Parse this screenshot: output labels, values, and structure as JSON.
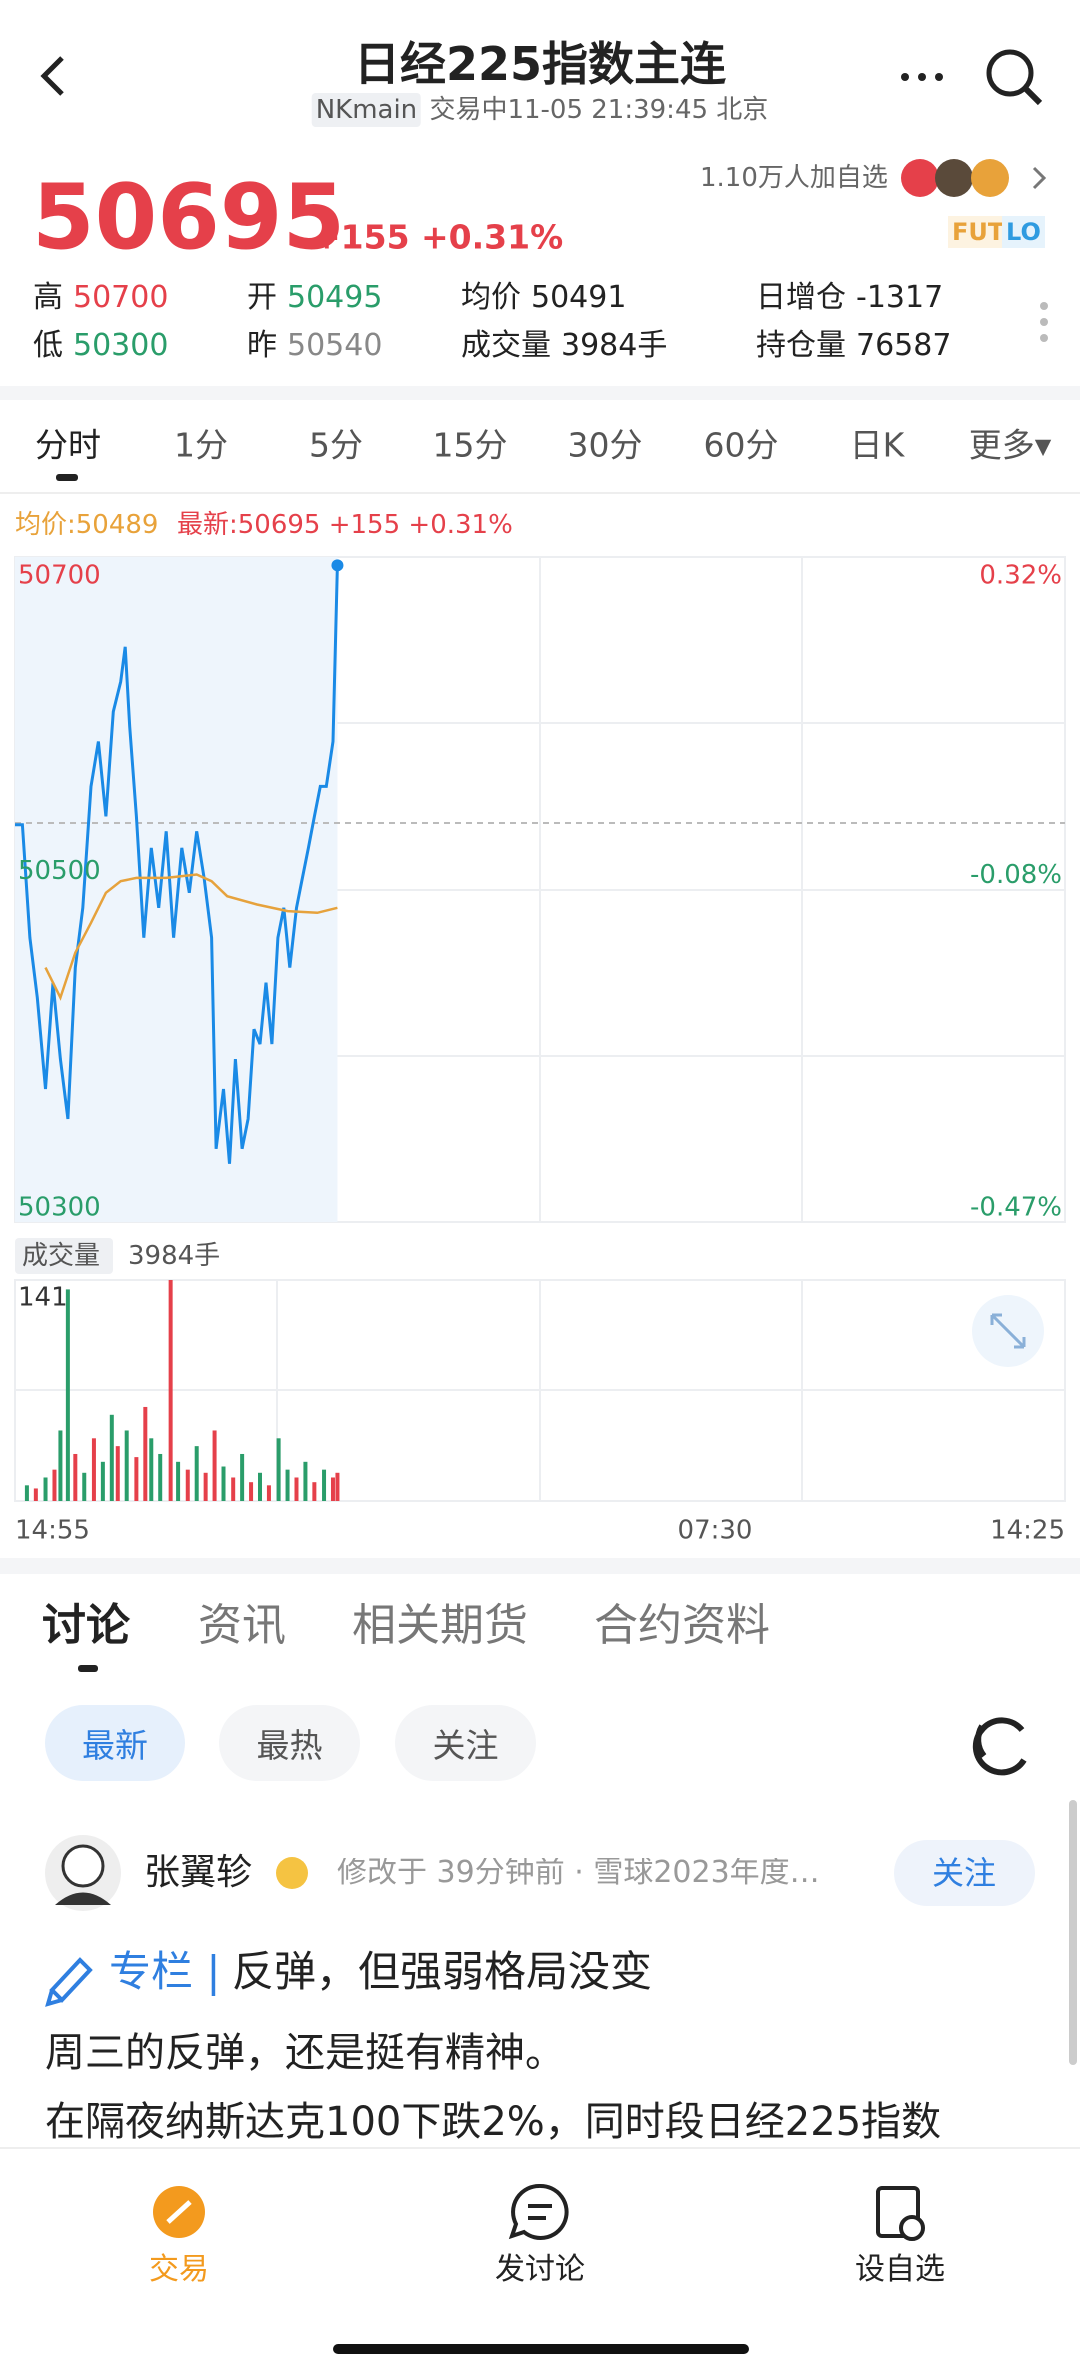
{
  "header": {
    "title": "日经225指数主连",
    "symbol": "NKmain",
    "status": "交易中11-05 21:39:45 北京"
  },
  "quote": {
    "price": "50695",
    "change": "+155 +0.31%",
    "followers": "1.10万人加自选",
    "badges": [
      "FUT",
      "LO"
    ],
    "stats": [
      {
        "label": "高",
        "value": "50700",
        "color": "#e5404a"
      },
      {
        "label": "开",
        "value": "50495",
        "color": "#2a9d6a"
      },
      {
        "label": "均价",
        "value": "50491",
        "color": "#222222"
      },
      {
        "label": "日增仓",
        "value": "-1317",
        "color": "#222222"
      },
      {
        "label": "低",
        "value": "50300",
        "color": "#2a9d6a"
      },
      {
        "label": "昨",
        "value": "50540",
        "color": "#888888"
      },
      {
        "label": "成交量",
        "value": "3984手",
        "color": "#222222"
      },
      {
        "label": "持仓量",
        "value": "76587",
        "color": "#222222"
      }
    ]
  },
  "tabs": [
    "分时",
    "1分",
    "5分",
    "15分",
    "30分",
    "60分",
    "日K",
    "更多▾"
  ],
  "legend": {
    "avg": "均价:50489",
    "latest": "最新:50695 +155 +0.31%"
  },
  "chart_data": [
    {
      "type": "line",
      "ylim": [
        50300,
        50700
      ],
      "yticks": [
        50300,
        50500,
        50700
      ],
      "y2lim": [
        -0.47,
        0.32
      ],
      "y2ticks": [
        {
          "value": -0.47,
          "label": "-0.47%"
        },
        {
          "value": -0.08,
          "label": "-0.08%"
        },
        {
          "value": 0.32,
          "label": "0.32%"
        }
      ],
      "reference": 50540,
      "xlim": [
        0,
        1410
      ],
      "xticks": [
        {
          "value": 0,
          "label": "14:55"
        },
        {
          "value": 940,
          "label": "07:30"
        },
        {
          "value": 1410,
          "label": "14:25"
        }
      ],
      "series": [
        {
          "name": "最新",
          "color": "#1a8ae6",
          "x": [
            0,
            10,
            20,
            30,
            41,
            51,
            61,
            71,
            81,
            91,
            102,
            112,
            122,
            132,
            142,
            148,
            154,
            163,
            173,
            183,
            193,
            203,
            213,
            224,
            234,
            244,
            254,
            264,
            270,
            280,
            288,
            296,
            305,
            313,
            321,
            329,
            337,
            345,
            353,
            361,
            369,
            378,
            386,
            394,
            402,
            410,
            418,
            427,
            433
          ],
          "values": [
            50539,
            50539,
            50471,
            50435,
            50380,
            50444,
            50398,
            50362,
            50453,
            50489,
            50562,
            50589,
            50544,
            50607,
            50625,
            50646,
            50598,
            50544,
            50471,
            50525,
            50489,
            50535,
            50471,
            50525,
            50498,
            50535,
            50507,
            50471,
            50344,
            50380,
            50335,
            50398,
            50344,
            50362,
            50416,
            50407,
            50444,
            50407,
            50471,
            50489,
            50453,
            50489,
            50507,
            50525,
            50544,
            50562,
            50562,
            50589,
            50695
          ]
        },
        {
          "name": "均价",
          "color": "#e6a23c",
          "x": [
            41,
            61,
            81,
            102,
            122,
            142,
            163,
            203,
            244,
            264,
            285,
            325,
            366,
            406,
            433
          ],
          "values": [
            50453,
            50435,
            50462,
            50480,
            50498,
            50505,
            50507,
            50507,
            50509,
            50505,
            50496,
            50491,
            50487,
            50486,
            50489
          ]
        }
      ]
    },
    {
      "type": "bar",
      "label": "成交量",
      "total": "3984手",
      "ylim": [
        0,
        141
      ],
      "yticks": [
        141
      ],
      "xlim": [
        0,
        1410
      ],
      "x": [
        16,
        28,
        41,
        53,
        61,
        71,
        81,
        93,
        106,
        118,
        130,
        138,
        150,
        163,
        175,
        183,
        195,
        209,
        219,
        232,
        244,
        256,
        268,
        280,
        293,
        305,
        317,
        329,
        341,
        354,
        366,
        378,
        390,
        402,
        415,
        427,
        433
      ],
      "values": [
        10,
        8,
        15,
        20,
        45,
        135,
        30,
        18,
        40,
        25,
        55,
        35,
        45,
        28,
        60,
        40,
        30,
        141,
        25,
        20,
        35,
        18,
        45,
        22,
        15,
        30,
        12,
        18,
        10,
        40,
        20,
        15,
        25,
        12,
        20,
        15,
        18
      ],
      "colors": [
        "#2a9d6a",
        "#e5404a",
        "#2a9d6a",
        "#e5404a",
        "#2a9d6a",
        "#2a9d6a",
        "#e5404a",
        "#2a9d6a",
        "#e5404a",
        "#2a9d6a",
        "#2a9d6a",
        "#e5404a",
        "#2a9d6a",
        "#e5404a",
        "#e5404a",
        "#2a9d6a",
        "#2a9d6a",
        "#e5404a",
        "#2a9d6a",
        "#e5404a",
        "#2a9d6a",
        "#e5404a",
        "#e5404a",
        "#2a9d6a",
        "#e5404a",
        "#2a9d6a",
        "#e5404a",
        "#2a9d6a",
        "#e5404a",
        "#2a9d6a",
        "#2a9d6a",
        "#e5404a",
        "#2a9d6a",
        "#e5404a",
        "#2a9d6a",
        "#e5404a",
        "#e5404a"
      ]
    }
  ],
  "news_tabs": [
    "讨论",
    "资讯",
    "相关期货",
    "合约资料"
  ],
  "filters": [
    "最新",
    "最热",
    "关注"
  ],
  "post": {
    "author": "张翼轸",
    "meta": "修改于 39分钟前 · 雪球2023年度…",
    "follow": "关注",
    "column": "专栏",
    "title": "反弹，但强弱格局没变",
    "lines": [
      "周三的反弹，还是挺有精神。",
      "在隔夜纳斯达克100下跌2%，同时段日经225指数"
    ]
  },
  "nav": [
    "交易",
    "发讨论",
    "设自选"
  ]
}
